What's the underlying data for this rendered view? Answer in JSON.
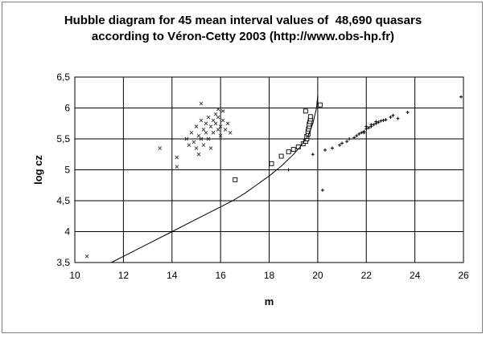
{
  "chart_data": {
    "type": "scatter",
    "title": "Hubble diagram for 45 mean interval values of  48,690 quasars",
    "subtitle": "according to Véron-Cetty 2003 (http://www.obs-hp.fr)",
    "xlabel": "m",
    "ylabel": "log cz",
    "xlim": [
      10,
      26
    ],
    "ylim": [
      3.5,
      6.5
    ],
    "grid": true,
    "x_ticks": [
      "10",
      "12",
      "14",
      "16",
      "18",
      "20",
      "22",
      "24",
      "26"
    ],
    "y_ticks": [
      "3,5",
      "4",
      "4,5",
      "5",
      "5,5",
      "6",
      "6,5"
    ],
    "series": [
      {
        "marker": "x",
        "points": [
          [
            10.5,
            3.6
          ],
          [
            13.5,
            5.35
          ],
          [
            14.2,
            5.05
          ],
          [
            14.2,
            5.2
          ],
          [
            14.6,
            5.5
          ],
          [
            14.7,
            5.4
          ],
          [
            14.8,
            5.6
          ],
          [
            14.9,
            5.45
          ],
          [
            15.0,
            5.7
          ],
          [
            15.0,
            5.35
          ],
          [
            15.1,
            5.55
          ],
          [
            15.1,
            5.25
          ],
          [
            15.2,
            5.8
          ],
          [
            15.2,
            5.5
          ],
          [
            15.3,
            5.65
          ],
          [
            15.3,
            5.4
          ],
          [
            15.4,
            5.75
          ],
          [
            15.4,
            5.6
          ],
          [
            15.5,
            5.85
          ],
          [
            15.5,
            5.5
          ],
          [
            15.6,
            5.7
          ],
          [
            15.6,
            5.35
          ],
          [
            15.7,
            5.8
          ],
          [
            15.7,
            5.6
          ],
          [
            15.8,
            5.9
          ],
          [
            15.8,
            5.75
          ],
          [
            15.9,
            5.65
          ],
          [
            15.9,
            5.85
          ],
          [
            16.0,
            5.7
          ],
          [
            16.0,
            5.55
          ],
          [
            16.1,
            5.95
          ],
          [
            16.1,
            5.8
          ],
          [
            16.2,
            5.65
          ],
          [
            16.3,
            5.75
          ],
          [
            16.4,
            5.6
          ],
          [
            15.2,
            6.07
          ],
          [
            15.9,
            5.98
          ]
        ]
      },
      {
        "marker": "square",
        "points": [
          [
            16.6,
            4.84
          ],
          [
            18.1,
            5.1
          ],
          [
            18.5,
            5.22
          ],
          [
            18.8,
            5.29
          ],
          [
            19.0,
            5.33
          ],
          [
            19.2,
            5.37
          ],
          [
            19.4,
            5.42
          ],
          [
            19.5,
            5.46
          ],
          [
            19.55,
            5.5
          ],
          [
            19.55,
            5.54
          ],
          [
            19.6,
            5.58
          ],
          [
            19.6,
            5.62
          ],
          [
            19.62,
            5.66
          ],
          [
            19.65,
            5.7
          ],
          [
            19.65,
            5.74
          ],
          [
            19.68,
            5.78
          ],
          [
            19.7,
            5.82
          ],
          [
            19.7,
            5.86
          ],
          [
            19.5,
            5.95
          ],
          [
            20.1,
            6.05
          ]
        ]
      },
      {
        "marker": "plus",
        "points": [
          [
            18.8,
            5.0
          ],
          [
            19.8,
            5.25
          ],
          [
            20.2,
            4.67
          ],
          [
            20.3,
            5.32
          ],
          [
            20.6,
            5.35
          ],
          [
            20.9,
            5.4
          ],
          [
            21.0,
            5.43
          ],
          [
            21.2,
            5.46
          ],
          [
            21.3,
            5.5
          ],
          [
            21.5,
            5.52
          ],
          [
            21.6,
            5.55
          ],
          [
            21.7,
            5.58
          ],
          [
            21.8,
            5.6
          ],
          [
            21.9,
            5.62
          ],
          [
            22.0,
            5.66
          ],
          [
            22.1,
            5.68
          ],
          [
            22.2,
            5.7
          ],
          [
            22.3,
            5.73
          ],
          [
            22.4,
            5.75
          ],
          [
            22.5,
            5.77
          ],
          [
            22.6,
            5.79
          ],
          [
            22.8,
            5.81
          ],
          [
            23.0,
            5.85
          ],
          [
            23.1,
            5.88
          ],
          [
            23.3,
            5.83
          ],
          [
            23.7,
            5.93
          ],
          [
            25.9,
            6.18
          ],
          [
            22.0,
            5.7
          ],
          [
            22.2,
            5.73
          ],
          [
            21.9,
            5.6
          ],
          [
            22.4,
            5.78
          ],
          [
            22.7,
            5.8
          ]
        ]
      },
      {
        "marker": "line",
        "points": [
          [
            11.5,
            3.5
          ],
          [
            12.0,
            3.6
          ],
          [
            13.0,
            3.8
          ],
          [
            14.0,
            4.0
          ],
          [
            15.0,
            4.2
          ],
          [
            16.0,
            4.4
          ],
          [
            16.5,
            4.5
          ],
          [
            17.0,
            4.62
          ],
          [
            17.5,
            4.76
          ],
          [
            18.0,
            4.9
          ],
          [
            18.5,
            5.06
          ],
          [
            19.0,
            5.25
          ],
          [
            19.3,
            5.38
          ],
          [
            19.6,
            5.55
          ],
          [
            19.8,
            5.75
          ],
          [
            19.95,
            6.0
          ],
          [
            20.0,
            6.2
          ]
        ]
      }
    ]
  }
}
